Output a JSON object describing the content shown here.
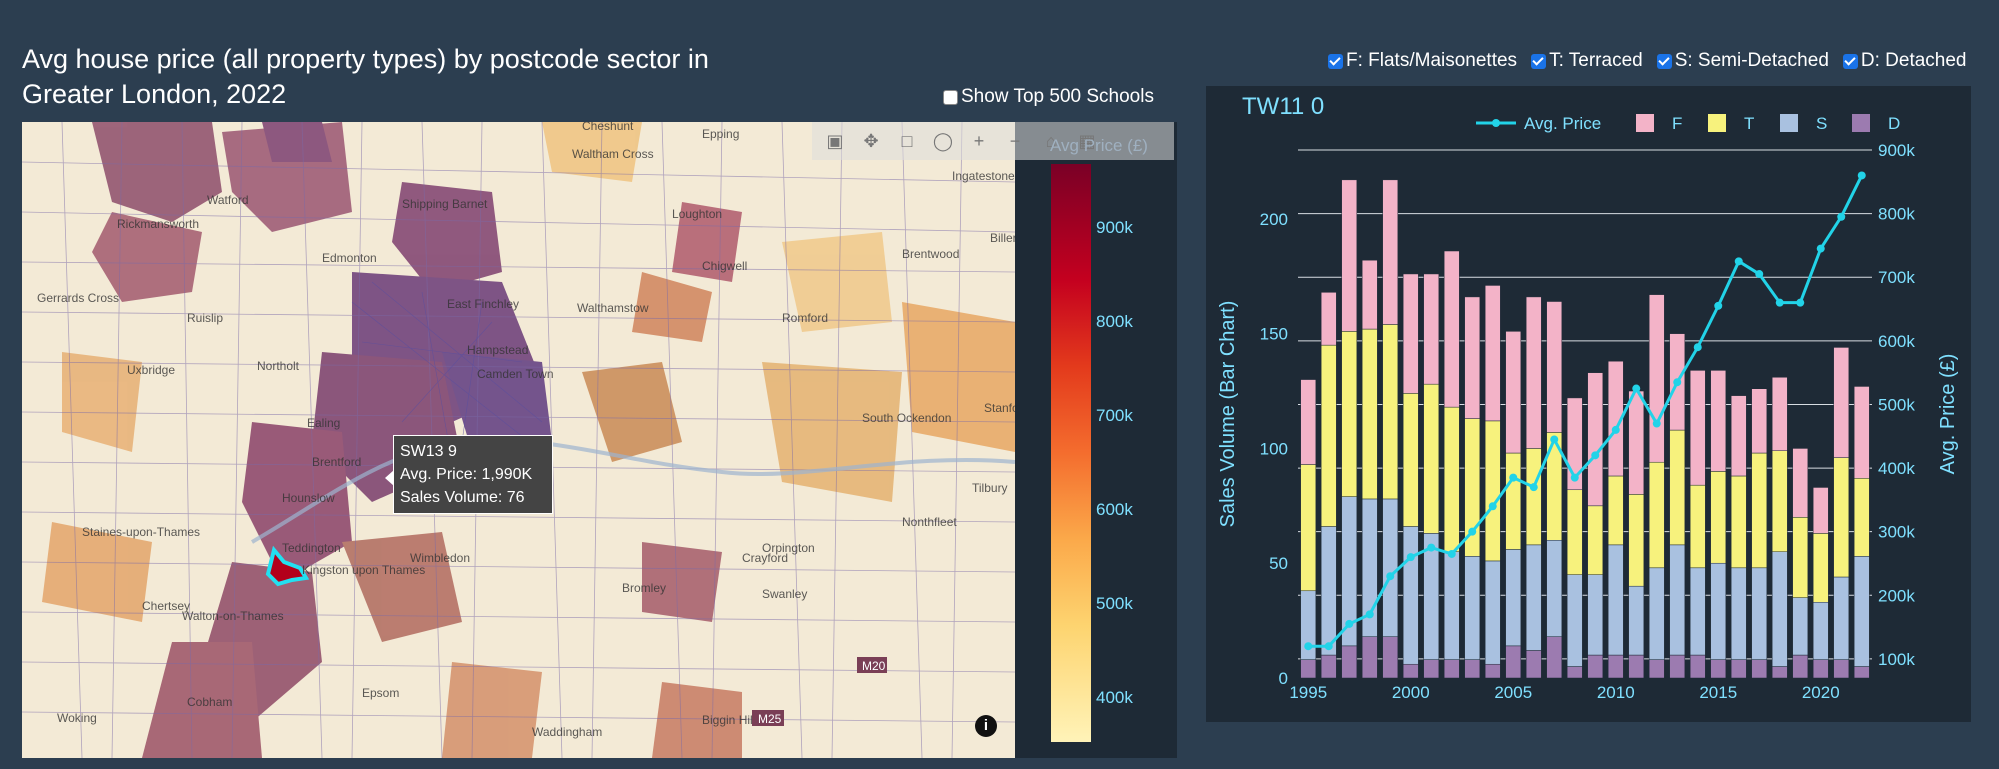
{
  "page": {
    "title": "Avg house price (all property types) by postcode sector in Greater London, 2022"
  },
  "filters": [
    {
      "label": "F: Flats/Maisonettes",
      "checked": true
    },
    {
      "label": "T: Terraced",
      "checked": true
    },
    {
      "label": "S: Semi-Detached",
      "checked": true
    },
    {
      "label": "D: Detached",
      "checked": true
    }
  ],
  "schools_toggle": {
    "label": "Show Top 500 Schools",
    "checked": false
  },
  "map": {
    "place_labels": [
      "Epping",
      "Cheshunt",
      "Waltham Cross",
      "Ingatestone",
      "Watford",
      "Shipping Barnet",
      "Rickmansworth",
      "Edmonton",
      "Loughton",
      "Chigwell",
      "Brentwood",
      "Billericay",
      "Gerrards Cross",
      "Ruislip",
      "East Finchley",
      "Walthamstow",
      "Hampstead",
      "Camden Town",
      "Romford",
      "Uxbridge",
      "Northolt",
      "Ealing",
      "Hounslow",
      "South Ockendon",
      "Stanford",
      "Brentford",
      "Tilbury",
      "Staines-upon-Thames",
      "Wimbledon",
      "Nonthfleet",
      "Teddington",
      "Kingston upon Thames",
      "Bromley",
      "Swanley",
      "Chertsey",
      "Walton-on-Thames",
      "Cobham",
      "Epsom",
      "Woking",
      "Waddingham",
      "Biggin Hill",
      "Orpington",
      "Crayford"
    ],
    "road_labels": [
      "M20",
      "M25"
    ],
    "colorbar": {
      "title": "Avg Price (£)",
      "ticks": [
        "900k",
        "800k",
        "700k",
        "600k",
        "500k",
        "400k"
      ]
    },
    "tooltip": {
      "sector": "SW13 9",
      "avg_price": "Avg. Price: 1,990K",
      "sales_volume": "Sales Volume: 76"
    },
    "info": "i"
  },
  "chart": {
    "panel_title": "TW11 0"
  },
  "chart_data": {
    "type": "bar",
    "title": "TW11 0",
    "x": [
      1995,
      1996,
      1997,
      1998,
      1999,
      2000,
      2001,
      2002,
      2003,
      2004,
      2005,
      2006,
      2007,
      2008,
      2009,
      2010,
      2011,
      2012,
      2013,
      2014,
      2015,
      2016,
      2017,
      2018,
      2019,
      2020,
      2021,
      2022
    ],
    "xticks": [
      "1995",
      "2000",
      "2005",
      "2010",
      "2015",
      "2020"
    ],
    "ylabel": "Sales Volume (Bar Chart)",
    "y2label": "Avg. Price (£)",
    "ylim": [
      0,
      230
    ],
    "y2lim": [
      70000,
      900000
    ],
    "yticks": [
      "0",
      "50",
      "100",
      "150",
      "200"
    ],
    "y2ticks": [
      "100k",
      "200k",
      "300k",
      "400k",
      "500k",
      "600k",
      "700k",
      "800k",
      "900k"
    ],
    "legend": [
      "Avg. Price",
      "F",
      "T",
      "S",
      "D"
    ],
    "legend_position": "top",
    "colors": {
      "F": "#f3b3c8",
      "T": "#f7f27d",
      "S": "#a9c1e0",
      "D": "#9c7bb0",
      "line": "#22d3e8"
    },
    "series": [
      {
        "name": "D",
        "values": [
          8,
          10,
          14,
          18,
          18,
          6,
          8,
          8,
          8,
          6,
          14,
          12,
          18,
          5,
          10,
          10,
          10,
          8,
          10,
          10,
          8,
          8,
          8,
          5,
          10,
          8,
          8,
          5
        ]
      },
      {
        "name": "S",
        "values": [
          30,
          56,
          65,
          60,
          60,
          60,
          55,
          47,
          45,
          45,
          42,
          46,
          42,
          40,
          35,
          48,
          30,
          40,
          48,
          38,
          42,
          40,
          40,
          50,
          25,
          25,
          36,
          48
        ]
      },
      {
        "name": "T",
        "values": [
          55,
          79,
          72,
          74,
          76,
          58,
          65,
          63,
          60,
          61,
          42,
          42,
          47,
          37,
          30,
          30,
          40,
          46,
          50,
          36,
          40,
          40,
          50,
          44,
          35,
          30,
          52,
          34
        ]
      },
      {
        "name": "F",
        "values": [
          37,
          23,
          66,
          30,
          63,
          52,
          48,
          68,
          53,
          59,
          53,
          66,
          57,
          40,
          58,
          50,
          45,
          73,
          42,
          50,
          44,
          35,
          28,
          32,
          30,
          20,
          48,
          40
        ]
      },
      {
        "name": "Avg. Price",
        "type": "line",
        "values": [
          120000,
          120000,
          155000,
          170000,
          230000,
          260000,
          275000,
          265000,
          300000,
          340000,
          385000,
          370000,
          445000,
          385000,
          420000,
          460000,
          525000,
          470000,
          535000,
          590000,
          655000,
          725000,
          705000,
          660000,
          660000,
          745000,
          795000,
          860000
        ]
      }
    ]
  }
}
